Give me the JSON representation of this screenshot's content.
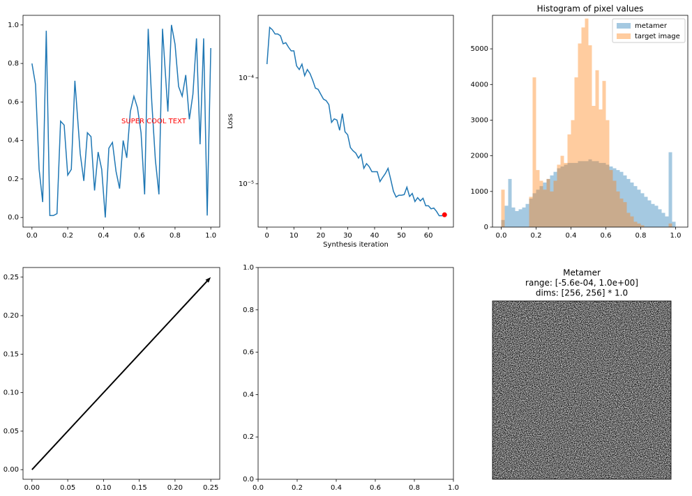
{
  "chart_data": [
    {
      "type": "line",
      "annotation": {
        "text": "SUPER COOL TEXT",
        "color": "red"
      },
      "x": [
        0,
        0.02,
        0.04,
        0.06,
        0.08,
        0.1,
        0.12,
        0.14,
        0.16,
        0.18,
        0.2,
        0.22,
        0.24,
        0.27,
        0.29,
        0.31,
        0.33,
        0.35,
        0.37,
        0.39,
        0.41,
        0.43,
        0.45,
        0.47,
        0.49,
        0.51,
        0.53,
        0.55,
        0.57,
        0.59,
        0.61,
        0.63,
        0.65,
        0.67,
        0.69,
        0.71,
        0.73,
        0.76,
        0.78,
        0.8,
        0.82,
        0.84,
        0.86,
        0.88,
        0.9,
        0.92,
        0.94,
        0.96,
        0.98,
        1.0
      ],
      "series": [
        {
          "color": "#1f77b4",
          "values": [
            0.8,
            0.69,
            0.25,
            0.08,
            0.97,
            0.01,
            0.01,
            0.02,
            0.5,
            0.48,
            0.22,
            0.25,
            0.71,
            0.33,
            0.19,
            0.44,
            0.42,
            0.14,
            0.34,
            0.25,
            0.0,
            0.36,
            0.39,
            0.24,
            0.15,
            0.4,
            0.31,
            0.55,
            0.63,
            0.57,
            0.44,
            0.12,
            0.98,
            0.6,
            0.3,
            0.12,
            0.98,
            0.55,
            1.0,
            0.9,
            0.68,
            0.63,
            0.74,
            0.51,
            0.64,
            0.93,
            0.38,
            0.93,
            0.01,
            0.88
          ]
        }
      ],
      "xlim": [
        -0.05,
        1.05
      ],
      "ylim": [
        -0.05,
        1.05
      ],
      "xticks": [
        {
          "value": 0,
          "label": "0.0"
        },
        0.2,
        0.4,
        0.6,
        0.8,
        {
          "value": 1,
          "label": "1.0"
        }
      ],
      "yticks": [
        {
          "value": 0,
          "label": "0.0"
        },
        0.2,
        0.4,
        0.6,
        0.8,
        {
          "value": 1,
          "label": "1.0"
        }
      ]
    },
    {
      "type": "line",
      "xlabel": "Synthesis iteration",
      "ylabel": "Loss",
      "log_y": true,
      "x": [
        0,
        1,
        2,
        3,
        4,
        5,
        6,
        7,
        8,
        9,
        10,
        11,
        12,
        13,
        14,
        15,
        16,
        17,
        18,
        19,
        20,
        21,
        22,
        23,
        24,
        25,
        26,
        27,
        28,
        29,
        30,
        31,
        32,
        33,
        34,
        35,
        36,
        37,
        38,
        39,
        40,
        41,
        42,
        43,
        44,
        45,
        46,
        47,
        48,
        49,
        50,
        51,
        52,
        53,
        54,
        55,
        56,
        57,
        58,
        59,
        60,
        61,
        62,
        63,
        64,
        65,
        66
      ],
      "series": [
        {
          "color": "#1f77b4",
          "values": [
            0.000135,
            0.0003,
            0.000285,
            0.00026,
            0.00026,
            0.00025,
            0.00021,
            0.000215,
            0.000195,
            0.00018,
            0.00018,
            0.00013,
            0.00012,
            0.000135,
            0.000105,
            0.00012,
            0.00011,
            9.5e-05,
            8e-05,
            7.8e-05,
            7e-05,
            6.3e-05,
            6.1e-05,
            5.6e-05,
            3.8e-05,
            4.1e-05,
            4e-05,
            3.2e-05,
            4.6e-05,
            3.1e-05,
            2.9e-05,
            2.2e-05,
            2.05e-05,
            1.95e-05,
            1.75e-05,
            1.9e-05,
            1.4e-05,
            1.55e-05,
            1.45e-05,
            1.3e-05,
            1.3e-05,
            1.3e-05,
            1.05e-05,
            1.15e-05,
            1.25e-05,
            1.4e-05,
            1.1e-05,
            8.5e-06,
            7.5e-06,
            7.8e-06,
            7.8e-06,
            7.9e-06,
            9.3e-06,
            7.6e-06,
            8.1e-06,
            6.8e-06,
            7.4e-06,
            6.9e-06,
            7.3e-06,
            6.2e-06,
            6.2e-06,
            5.8e-06,
            5.9e-06,
            5.5e-06,
            5e-06,
            5e-06,
            5.1e-06
          ]
        }
      ],
      "marker": {
        "x": 66,
        "value": 5.1e-06,
        "color": "red"
      },
      "xlim": [
        -3.3,
        69.3
      ],
      "ylim": [
        3.9e-06,
        0.00039
      ],
      "xticks": [
        0,
        10,
        20,
        30,
        40,
        50,
        60
      ],
      "yticks": [
        {
          "value": 0.0001,
          "label": "10⁻⁴"
        },
        {
          "value": 1e-05,
          "label": "10⁻⁵"
        }
      ]
    },
    {
      "type": "histogram",
      "title": "Histogram of pixel values",
      "legend": "upper right",
      "bins": [
        0,
        0.02,
        0.04,
        0.06,
        0.08,
        0.1,
        0.12,
        0.14,
        0.16,
        0.18,
        0.2,
        0.22,
        0.24,
        0.26,
        0.28,
        0.3,
        0.32,
        0.34,
        0.36,
        0.38,
        0.4,
        0.42,
        0.44,
        0.46,
        0.48,
        0.5,
        0.52,
        0.54,
        0.56,
        0.58,
        0.6,
        0.62,
        0.64,
        0.66,
        0.68,
        0.7,
        0.72,
        0.74,
        0.76,
        0.78,
        0.8,
        0.82,
        0.84,
        0.86,
        0.88,
        0.9,
        0.92,
        0.94,
        0.96,
        0.98,
        1.0
      ],
      "series": [
        {
          "name": "metamer",
          "color": "#1f77b4",
          "values": [
            200,
            600,
            1350,
            550,
            450,
            500,
            550,
            650,
            800,
            950,
            1050,
            1150,
            1250,
            1350,
            1450,
            1550,
            1650,
            1700,
            1750,
            1800,
            1800,
            1800,
            1850,
            1850,
            1850,
            1900,
            1850,
            1850,
            1800,
            1800,
            1750,
            1700,
            1650,
            1600,
            1550,
            1450,
            1350,
            1250,
            1150,
            1050,
            950,
            850,
            750,
            650,
            600,
            500,
            400,
            300,
            2100,
            150
          ]
        },
        {
          "name": "target image",
          "color": "#ff7f0e",
          "values": [
            1050,
            0,
            0,
            0,
            0,
            0,
            0,
            0,
            850,
            4200,
            1600,
            1300,
            1050,
            1350,
            1000,
            1300,
            1750,
            2000,
            1800,
            2600,
            3000,
            4200,
            5150,
            5600,
            5850,
            5100,
            3400,
            4400,
            3300,
            4100,
            3000,
            1600,
            1300,
            1000,
            800,
            700,
            400,
            300,
            150,
            100,
            50,
            0,
            0,
            0,
            0,
            0,
            0,
            0,
            100,
            0
          ]
        }
      ],
      "xlim": [
        -0.05,
        1.07
      ],
      "ylim": [
        0,
        5940
      ],
      "xticks": [
        {
          "value": 0,
          "label": "0.0"
        },
        0.2,
        0.4,
        0.6,
        0.8,
        {
          "value": 1,
          "label": "1.0"
        }
      ],
      "yticks": [
        0,
        1000,
        2000,
        3000,
        4000,
        5000
      ]
    },
    {
      "type": "quiver",
      "start": [
        0,
        0
      ],
      "end": [
        0.25,
        0.25
      ],
      "color": "#000000",
      "xlim": [
        -0.0125,
        0.2625
      ],
      "ylim": [
        -0.0125,
        0.2625
      ],
      "xticks": [
        {
          "value": 0,
          "label": "0.00"
        },
        0.05,
        {
          "value": 0.1,
          "label": "0.10"
        },
        0.15,
        {
          "value": 0.2,
          "label": "0.20"
        },
        0.25
      ],
      "yticks": [
        {
          "value": 0,
          "label": "0.00"
        },
        0.05,
        {
          "value": 0.1,
          "label": "0.10"
        },
        0.15,
        {
          "value": 0.2,
          "label": "0.20"
        },
        0.25
      ]
    },
    {
      "type": "line",
      "series": [],
      "xlim": [
        0,
        1
      ],
      "ylim": [
        0,
        1
      ],
      "xticks": [
        {
          "value": 0,
          "label": "0.0"
        },
        0.2,
        0.4,
        0.6,
        0.8,
        {
          "value": 1,
          "label": "1.0"
        }
      ],
      "yticks": [
        {
          "value": 0,
          "label": "0.0"
        },
        0.2,
        0.4,
        0.6,
        0.8,
        {
          "value": 1,
          "label": "1.0"
        }
      ]
    },
    {
      "type": "image",
      "title": [
        "Metamer",
        "range: [-5.6e-04, 1.0e+00]",
        "dims: [256, 256] * 1.0"
      ]
    }
  ]
}
